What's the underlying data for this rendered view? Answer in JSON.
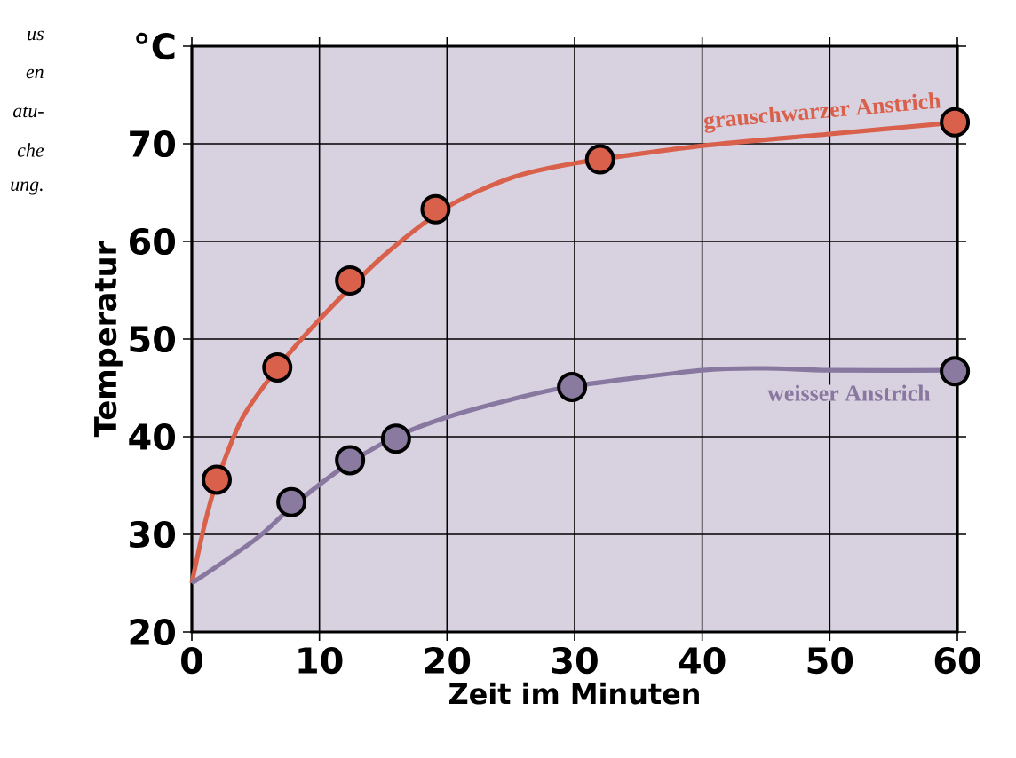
{
  "chart_data": {
    "type": "line",
    "xlabel": "Zeit im Minuten",
    "ylabel": "Temperatur",
    "xlim": [
      0,
      60
    ],
    "xticks": [
      0,
      10,
      20,
      30,
      40,
      50,
      60
    ],
    "ylim": [
      20,
      80
    ],
    "yticks": [
      20,
      30,
      40,
      50,
      60,
      70,
      {
        "value": 80,
        "label": "°C"
      }
    ],
    "grid": true,
    "annotations": [
      "us",
      "en",
      "atu-",
      "che",
      "ung."
    ],
    "series": [
      {
        "name": "grauschwarzer Anstrich",
        "marker": "none",
        "color": "#d9604a",
        "x": [
          0,
          1,
          2,
          4,
          7,
          10,
          15,
          20,
          25,
          30,
          40,
          50,
          60
        ],
        "values": [
          25,
          31,
          35.6,
          42,
          47.5,
          52,
          58.5,
          63.5,
          66.5,
          68,
          69.8,
          71,
          72.2
        ]
      },
      {
        "name": "weisser Anstrich",
        "marker": "none",
        "color": "#8878a0",
        "x": [
          0,
          5,
          8,
          12,
          16,
          20,
          25,
          30,
          40,
          45,
          50,
          60
        ],
        "values": [
          25,
          29.5,
          33,
          37,
          40,
          42,
          43.8,
          45.2,
          46.8,
          47,
          46.8,
          46.8
        ]
      },
      {
        "type": "scatter",
        "marker": "circle",
        "color": "#d9604a",
        "x": [
          1.95,
          6.7,
          12.4,
          19.1,
          32,
          59.8
        ],
        "values": [
          35.6,
          47.1,
          56,
          63.3,
          68.4,
          72.2
        ]
      },
      {
        "type": "scatter",
        "marker": "circle",
        "color": "#8a7aa0",
        "x": [
          7.8,
          12.4,
          16,
          29.8,
          59.8
        ],
        "values": [
          33.3,
          37.6,
          39.8,
          45.1,
          46.7
        ]
      }
    ]
  }
}
